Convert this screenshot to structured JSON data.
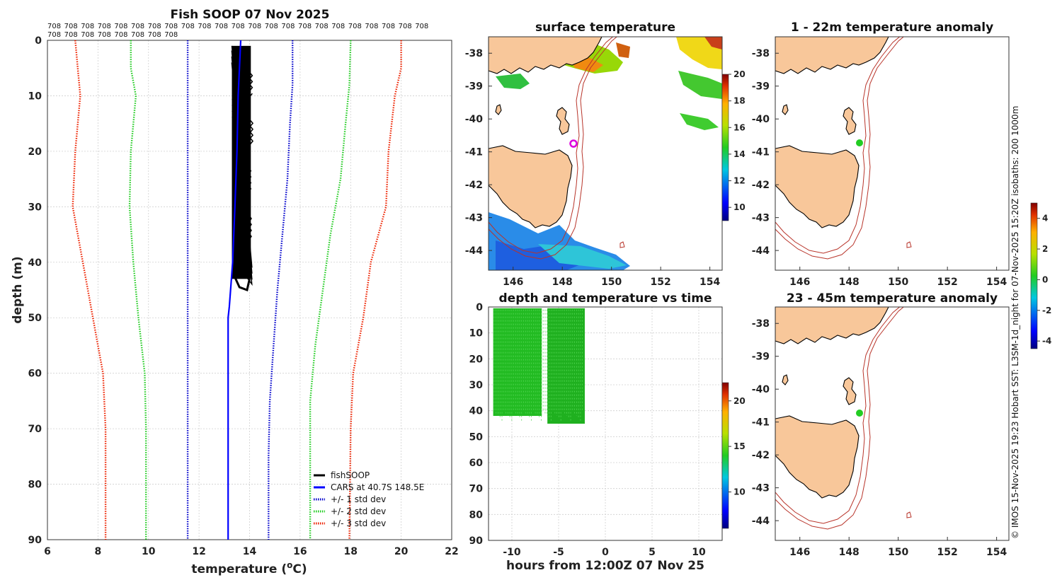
{
  "chart_data": [
    {
      "type": "line",
      "title": "Fish SOOP 07 Nov 2025",
      "xlabel": "temperature (°C)",
      "ylabel": "depth (m)",
      "xlim": [
        6,
        22
      ],
      "ylim": [
        0,
        90
      ],
      "xticks": [
        "6",
        "8",
        "10",
        "12",
        "14",
        "16",
        "18",
        "20",
        "22"
      ],
      "yticks": [
        "0",
        "10",
        "20",
        "30",
        "40",
        "50",
        "60",
        "70",
        "80",
        "90"
      ],
      "top_label_value": "708",
      "top_label_rows": [
        23,
        8
      ],
      "legend": [
        "fishSOOP",
        "CARS at 40.7S 148.5E",
        "+/- 1 std dev",
        "+/- 2 std dev",
        "+/- 3 std dev"
      ],
      "series": [
        {
          "name": "CARS at 40.7S 148.5E",
          "color": "#0000ff",
          "style": "solid",
          "points": [
            [
              13.65,
              0
            ],
            [
              13.6,
              5
            ],
            [
              13.55,
              10
            ],
            [
              13.5,
              20
            ],
            [
              13.42,
              30
            ],
            [
              13.33,
              40
            ],
            [
              13.2,
              48
            ],
            [
              13.15,
              50
            ],
            [
              13.15,
              60
            ],
            [
              13.15,
              70
            ],
            [
              13.15,
              80
            ],
            [
              13.15,
              90
            ]
          ]
        },
        {
          "name": "+1 std dev",
          "color": "#0000cc",
          "style": "dotted",
          "points": [
            [
              15.7,
              0
            ],
            [
              15.7,
              8
            ],
            [
              15.6,
              15
            ],
            [
              15.5,
              25
            ],
            [
              15.3,
              35
            ],
            [
              15.1,
              45
            ],
            [
              14.95,
              55
            ],
            [
              14.8,
              65
            ],
            [
              14.75,
              75
            ],
            [
              14.75,
              90
            ]
          ]
        },
        {
          "name": "-1 std dev",
          "color": "#0000cc",
          "style": "dotted",
          "points": [
            [
              11.55,
              0
            ],
            [
              11.55,
              20
            ],
            [
              11.55,
              50
            ],
            [
              11.55,
              90
            ]
          ]
        },
        {
          "name": "+2 std dev",
          "color": "#22cc22",
          "style": "dotted",
          "points": [
            [
              18.0,
              0
            ],
            [
              17.95,
              8
            ],
            [
              17.8,
              15
            ],
            [
              17.6,
              25
            ],
            [
              17.2,
              35
            ],
            [
              16.9,
              45
            ],
            [
              16.6,
              55
            ],
            [
              16.4,
              65
            ],
            [
              16.4,
              90
            ]
          ]
        },
        {
          "name": "-2 std dev",
          "color": "#22cc22",
          "style": "dotted",
          "points": [
            [
              9.3,
              0
            ],
            [
              9.3,
              5
            ],
            [
              9.5,
              10
            ],
            [
              9.3,
              20
            ],
            [
              9.25,
              30
            ],
            [
              9.4,
              40
            ],
            [
              9.6,
              50
            ],
            [
              9.85,
              60
            ],
            [
              9.9,
              70
            ],
            [
              9.9,
              90
            ]
          ]
        },
        {
          "name": "+3 std dev",
          "color": "#ee2200",
          "style": "dotted",
          "points": [
            [
              20.0,
              0
            ],
            [
              20.0,
              5
            ],
            [
              19.75,
              10
            ],
            [
              19.5,
              20
            ],
            [
              19.4,
              30
            ],
            [
              18.8,
              40
            ],
            [
              18.5,
              50
            ],
            [
              18.1,
              60
            ],
            [
              18.0,
              70
            ],
            [
              17.95,
              90
            ]
          ]
        },
        {
          "name": "-3 std dev",
          "color": "#ee2200",
          "style": "dotted",
          "points": [
            [
              7.1,
              0
            ],
            [
              7.2,
              5
            ],
            [
              7.3,
              10
            ],
            [
              7.1,
              20
            ],
            [
              7.0,
              30
            ],
            [
              7.4,
              40
            ],
            [
              7.8,
              50
            ],
            [
              8.2,
              60
            ],
            [
              8.3,
              70
            ],
            [
              8.3,
              90
            ]
          ]
        }
      ],
      "fishsoop_band": {
        "color": "#000000",
        "t_min": 13.3,
        "t_max": 14.05,
        "depth_min": 1,
        "depth_max": 45
      }
    },
    {
      "type": "heatmap",
      "title": "surface temperature",
      "xlim": [
        145,
        154.5
      ],
      "ylim": [
        -44.6,
        -37.5
      ],
      "xticks": [
        "146",
        "148",
        "150",
        "152",
        "154"
      ],
      "yticks": [
        "-38",
        "-39",
        "-40",
        "-41",
        "-42",
        "-43",
        "-44"
      ],
      "colorbar": {
        "min": 9,
        "max": 20,
        "ticks": [
          "10",
          "12",
          "14",
          "16",
          "18",
          "20"
        ]
      },
      "marker": {
        "lon": 148.5,
        "lat": -40.75,
        "color": "#dd00dd"
      }
    },
    {
      "type": "scatter",
      "title": "depth and temperature vs time",
      "xlabel": "hours from 12:00Z 07 Nov 25",
      "xlim": [
        -12.5,
        12.5
      ],
      "ylim": [
        0,
        90
      ],
      "xticks": [
        "-10",
        "-5",
        "0",
        "5",
        "10"
      ],
      "yticks": [
        "0",
        "10",
        "20",
        "30",
        "40",
        "50",
        "60",
        "70",
        "80",
        "90"
      ],
      "colorbar": {
        "min": 6,
        "max": 22,
        "ticks": [
          "10",
          "15",
          "20"
        ]
      },
      "points_cover": {
        "t_start": -12,
        "t_end": -2.2,
        "depth_min": 0,
        "depth_max": 45,
        "temp": 13.8,
        "color": "#22bb22"
      }
    },
    {
      "type": "heatmap",
      "title": "1 - 22m temperature anomaly",
      "xlim": [
        145,
        154.5
      ],
      "ylim": [
        -44.6,
        -37.5
      ],
      "xticks": [
        "146",
        "148",
        "150",
        "152",
        "154"
      ],
      "yticks": [
        "-38",
        "-39",
        "-40",
        "-41",
        "-42",
        "-43",
        "-44"
      ],
      "anomaly_point": {
        "lon": 148.45,
        "lat": -40.75,
        "value": 0.1,
        "color": "#22cc22"
      }
    },
    {
      "type": "heatmap",
      "title": "23 - 45m temperature anomaly",
      "xlim": [
        145,
        154.5
      ],
      "ylim": [
        -44.6,
        -37.5
      ],
      "xticks": [
        "146",
        "148",
        "150",
        "152",
        "154"
      ],
      "yticks": [
        "-38",
        "-39",
        "-40",
        "-41",
        "-42",
        "-43",
        "-44"
      ],
      "anomaly_point": {
        "lon": 148.45,
        "lat": -40.75,
        "value": 0.1,
        "color": "#22cc22"
      },
      "colorbar": {
        "min": -4.5,
        "max": 5,
        "ticks": [
          "-4",
          "-2",
          "0",
          "2",
          "4"
        ]
      }
    }
  ],
  "credit": "© IMOS 15-Nov-2025 19:23 Hobart SST: L3SM-1d_night for 07-Nov-2025 15:20Z isobaths: 200  1000m"
}
